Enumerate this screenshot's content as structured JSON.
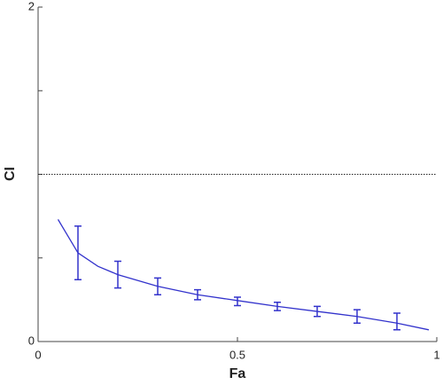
{
  "chart_data": {
    "type": "errorbar",
    "xlabel": "Fa",
    "ylabel": "CI",
    "xlim": [
      0,
      1
    ],
    "ylim": [
      0,
      2
    ],
    "xticks": [
      0,
      0.5,
      1
    ],
    "yticks": [
      0,
      2
    ],
    "yminor": [
      0.5,
      1,
      1.5
    ],
    "reference_line": 1,
    "color": "#3333cc",
    "points": {
      "x": [
        0.1,
        0.2,
        0.3,
        0.4,
        0.5,
        0.6,
        0.7,
        0.8,
        0.9
      ],
      "values": [
        0.53,
        0.4,
        0.33,
        0.28,
        0.24,
        0.21,
        0.18,
        0.15,
        0.12
      ],
      "errors": [
        0.16,
        0.08,
        0.05,
        0.03,
        0.025,
        0.025,
        0.03,
        0.04,
        0.05
      ]
    },
    "fit": {
      "x": [
        0.05,
        0.1,
        0.15,
        0.2,
        0.3,
        0.4,
        0.5,
        0.6,
        0.7,
        0.8,
        0.9,
        0.98
      ],
      "values": [
        0.73,
        0.53,
        0.45,
        0.4,
        0.33,
        0.28,
        0.245,
        0.21,
        0.18,
        0.15,
        0.11,
        0.07
      ]
    }
  }
}
